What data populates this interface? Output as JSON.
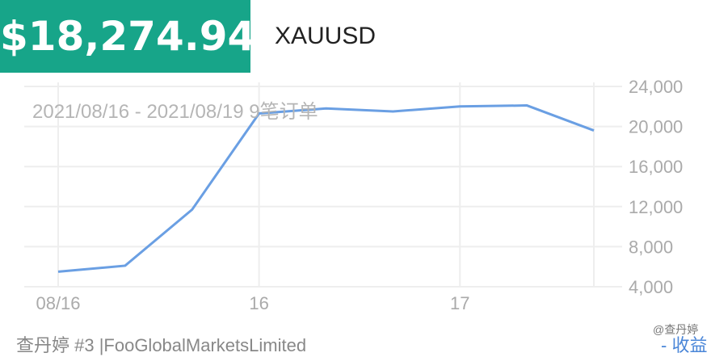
{
  "header": {
    "price": "$18,274.94",
    "symbol": "XAUUSD",
    "accent": "#17a589"
  },
  "subtitle": "2021/08/16 - 2021/08/19 9笔订单",
  "footer": {
    "text": "查丹婷 #3 |FooGlobalMarketsLimited",
    "watermark": "@查丹婷",
    "legend": "- 收益"
  },
  "chart_data": {
    "type": "line",
    "series": [
      {
        "name": "收益",
        "color": "#6a9fe3",
        "values": [
          5500,
          6100,
          11700,
          21300,
          21800,
          21500,
          22000,
          22100,
          19600
        ]
      }
    ],
    "x_tick_labels": [
      {
        "index": 0,
        "label": "08/16"
      },
      {
        "index": 3,
        "label": "16"
      },
      {
        "index": 6,
        "label": "17"
      }
    ],
    "ylim": [
      4000,
      24000
    ],
    "y_ticks": [
      "4,000",
      "8,000",
      "12,000",
      "16,000",
      "20,000",
      "24,000"
    ],
    "y_axis_position": "right",
    "grid": true
  }
}
